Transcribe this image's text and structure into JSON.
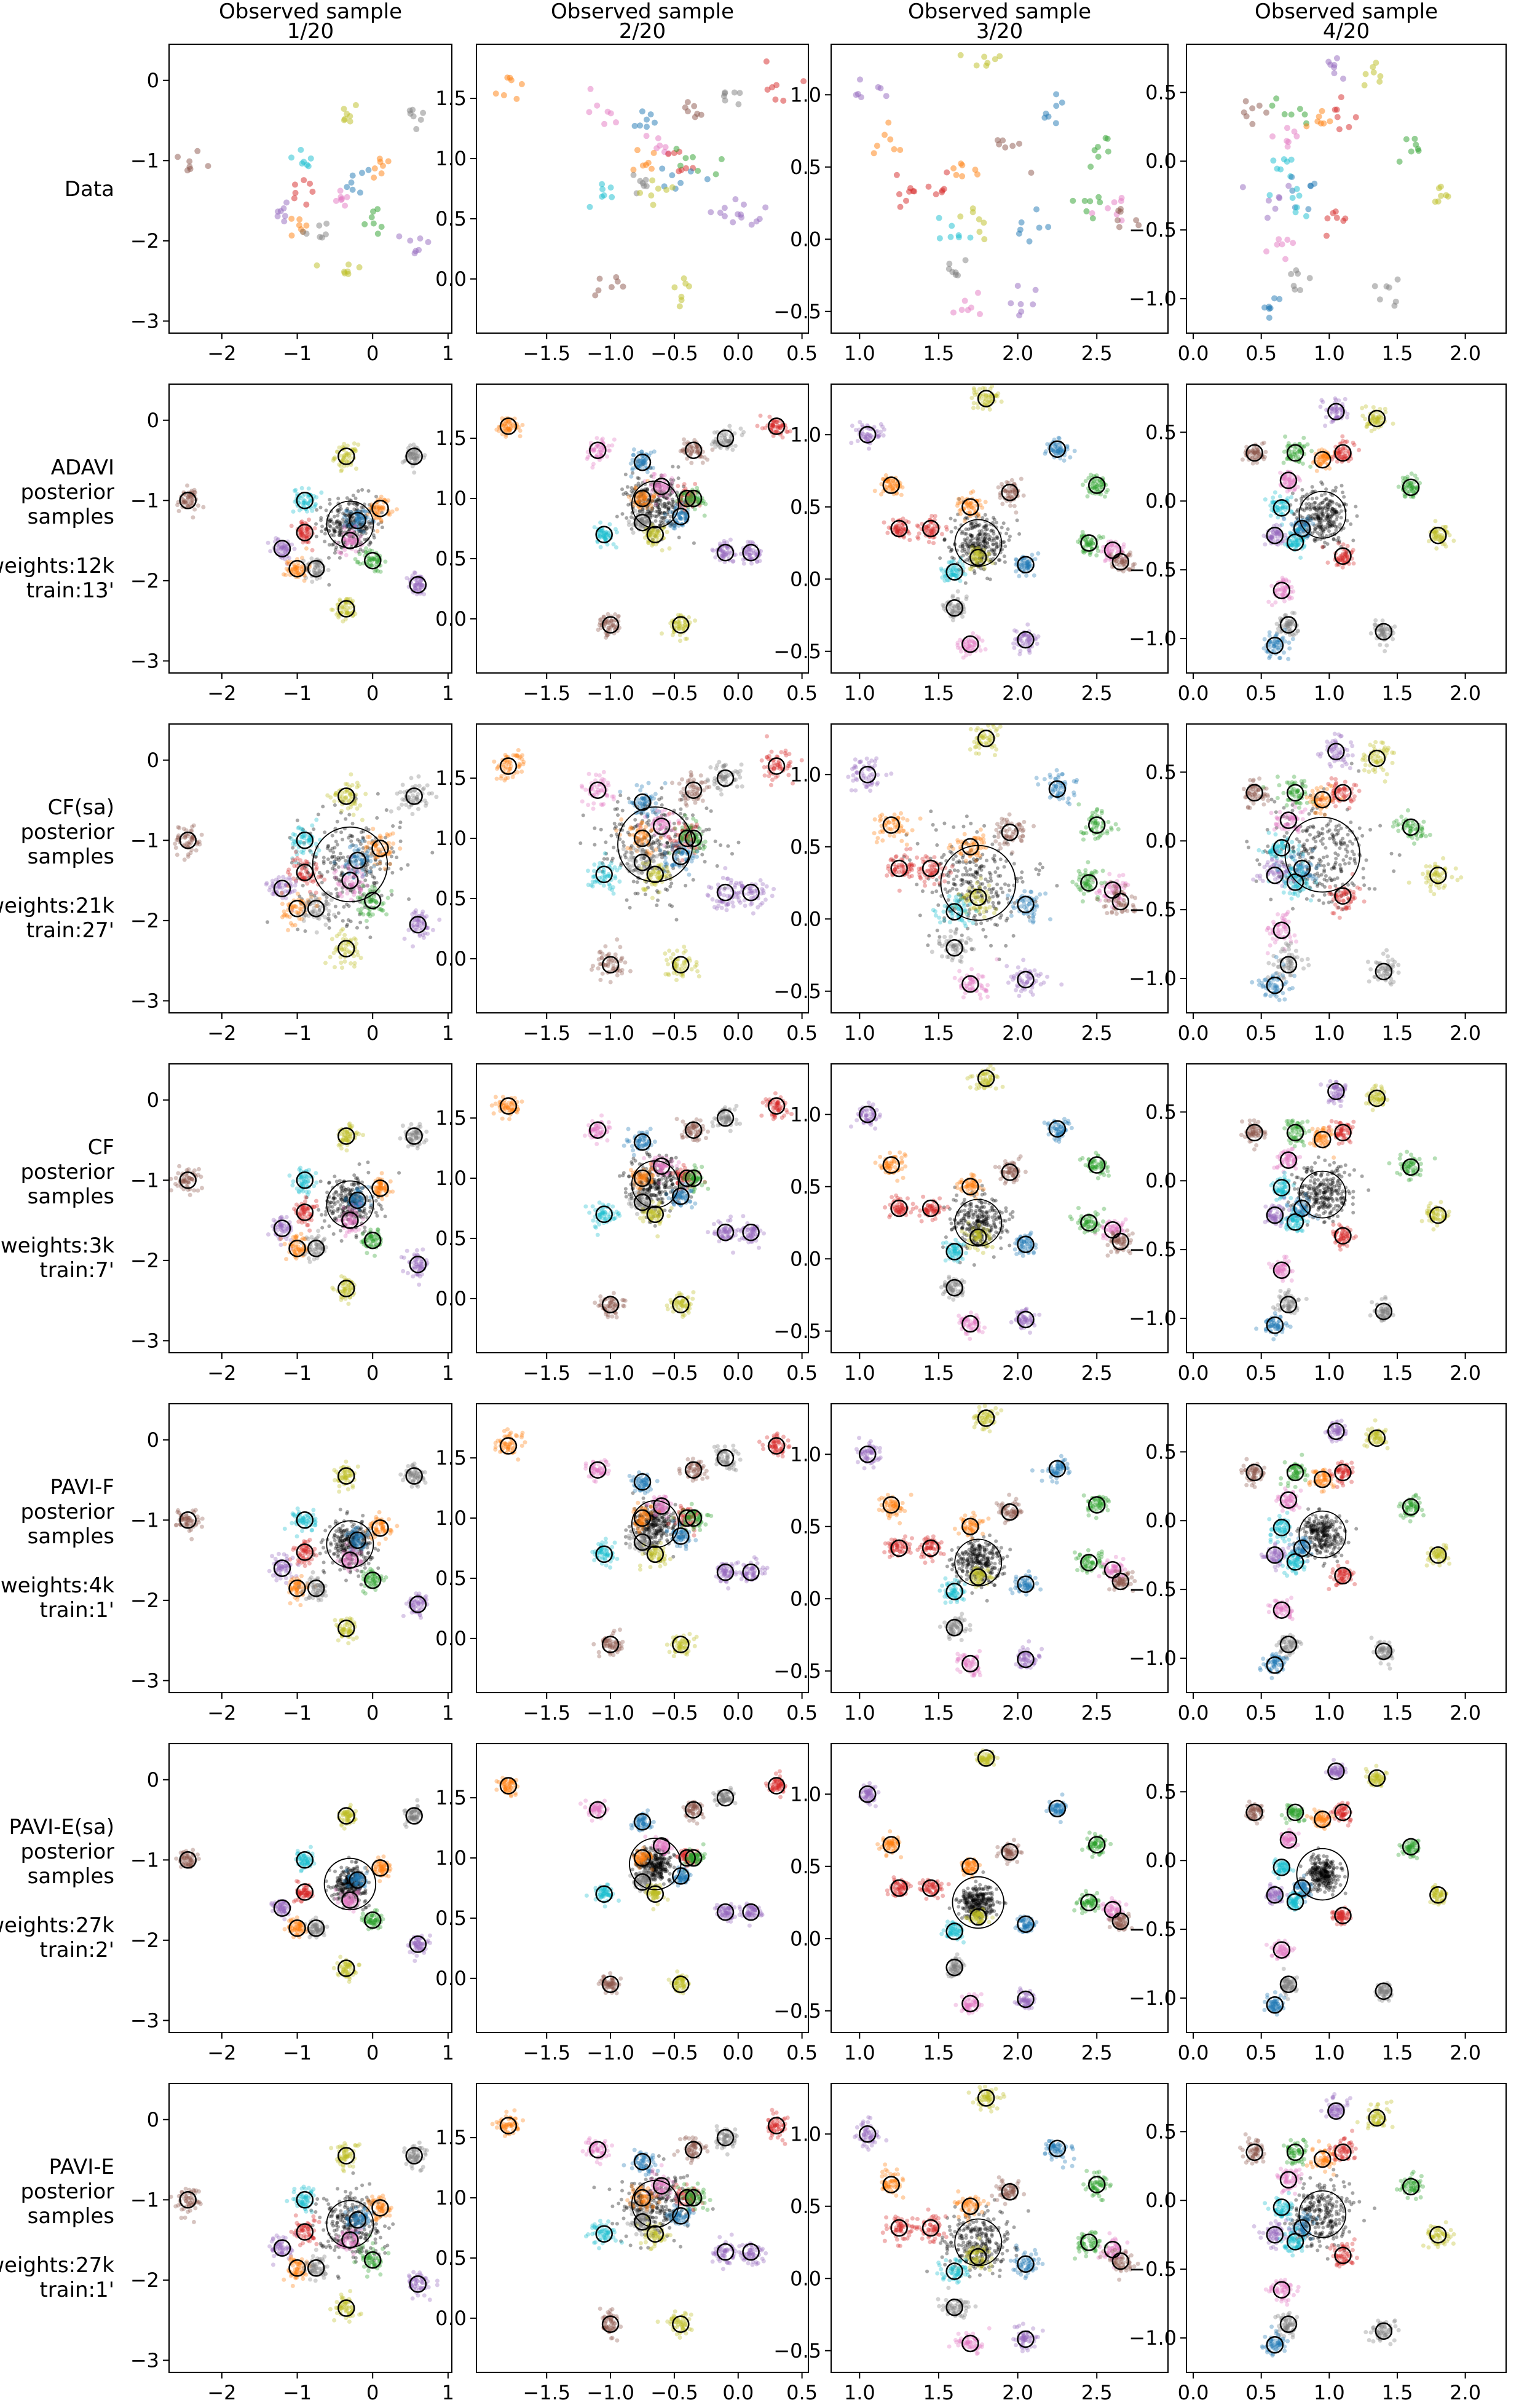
{
  "figure": {
    "columns": [
      {
        "title_line1": "Observed sample",
        "title_line2": "1/20"
      },
      {
        "title_line1": "Observed sample",
        "title_line2": "2/20"
      },
      {
        "title_line1": "Observed sample",
        "title_line2": "3/20"
      },
      {
        "title_line1": "Observed sample",
        "title_line2": "4/20"
      }
    ],
    "rows": [
      {
        "label_lines": [
          "Data"
        ],
        "method": "Data"
      },
      {
        "label_lines": [
          "ADAVI",
          "posterior",
          "samples",
          "",
          "weights:12k",
          "train:13'"
        ],
        "method": "ADAVI"
      },
      {
        "label_lines": [
          "CF(sa)",
          "posterior",
          "samples",
          "",
          "weights:21k",
          "train:27'"
        ],
        "method": "CF(sa)"
      },
      {
        "label_lines": [
          "CF",
          "posterior",
          "samples",
          "",
          "weights:3k",
          "train:7'"
        ],
        "method": "CF"
      },
      {
        "label_lines": [
          "PAVI-F",
          "posterior",
          "samples",
          "",
          "weights:4k",
          "train:1'"
        ],
        "method": "PAVI-F"
      },
      {
        "label_lines": [
          "PAVI-E(sa)",
          "posterior",
          "samples",
          "",
          "weights:27k",
          "train:2'"
        ],
        "method": "PAVI-E(sa)"
      },
      {
        "label_lines": [
          "PAVI-E",
          "posterior",
          "samples",
          "",
          "weights:27k",
          "train:1'"
        ],
        "method": "PAVI-E"
      }
    ],
    "palette": {
      "blue": "#1f77b4",
      "orange": "#ff7f0e",
      "green": "#2ca02c",
      "red": "#d62728",
      "purple": "#9467bd",
      "brown": "#8c564b",
      "pink": "#e377c2",
      "gray": "#7f7f7f",
      "olive": "#bcbd22",
      "cyan": "#17becf",
      "black": "#000000"
    }
  },
  "chart_data": [
    {
      "type": "scatter",
      "panel": "observed-sample-1-of-20",
      "xlim": [
        -2.7,
        1.05
      ],
      "ylim": [
        -3.15,
        0.45
      ],
      "xticks": [
        -2,
        -1,
        0,
        1
      ],
      "yticks": [
        -3,
        -2,
        -1,
        0
      ],
      "xtick_labels": [
        "−2",
        "−1",
        "0",
        "1"
      ],
      "ytick_labels": [
        "−3",
        "−2",
        "−1",
        "0"
      ],
      "population_mean": [
        -0.3,
        -1.3
      ],
      "clusters": [
        {
          "color": "brown",
          "mean": [
            -2.45,
            -1.0
          ]
        },
        {
          "color": "olive",
          "mean": [
            -0.35,
            -0.45
          ]
        },
        {
          "color": "gray",
          "mean": [
            0.55,
            -0.45
          ]
        },
        {
          "color": "cyan",
          "mean": [
            -0.9,
            -1.0
          ]
        },
        {
          "color": "orange",
          "mean": [
            0.1,
            -1.1
          ]
        },
        {
          "color": "blue",
          "mean": [
            -0.2,
            -1.25
          ]
        },
        {
          "color": "red",
          "mean": [
            -0.9,
            -1.4
          ]
        },
        {
          "color": "pink",
          "mean": [
            -0.3,
            -1.5
          ]
        },
        {
          "color": "purple",
          "mean": [
            -1.2,
            -1.6
          ]
        },
        {
          "color": "orange",
          "mean": [
            -1.0,
            -1.85
          ]
        },
        {
          "color": "gray",
          "mean": [
            -0.75,
            -1.85
          ]
        },
        {
          "color": "green",
          "mean": [
            0.0,
            -1.75
          ]
        },
        {
          "color": "purple",
          "mean": [
            0.6,
            -2.05
          ]
        },
        {
          "color": "olive",
          "mean": [
            -0.35,
            -2.35
          ]
        }
      ]
    },
    {
      "type": "scatter",
      "panel": "observed-sample-2-of-20",
      "xlim": [
        -2.05,
        0.55
      ],
      "ylim": [
        -0.45,
        1.95
      ],
      "xticks": [
        -1.5,
        -1.0,
        -0.5,
        0.0,
        0.5
      ],
      "yticks": [
        0.0,
        0.5,
        1.0,
        1.5
      ],
      "xtick_labels": [
        "−1.5",
        "−1.0",
        "−0.5",
        "0.0",
        "0.5"
      ],
      "ytick_labels": [
        "0.0",
        "0.5",
        "1.0",
        "1.5"
      ],
      "population_mean": [
        -0.65,
        0.95
      ],
      "clusters": [
        {
          "color": "orange",
          "mean": [
            -1.8,
            1.6
          ]
        },
        {
          "color": "pink",
          "mean": [
            -1.1,
            1.4
          ]
        },
        {
          "color": "blue",
          "mean": [
            -0.75,
            1.3
          ]
        },
        {
          "color": "brown",
          "mean": [
            -0.35,
            1.4
          ]
        },
        {
          "color": "gray",
          "mean": [
            -0.1,
            1.5
          ]
        },
        {
          "color": "red",
          "mean": [
            0.3,
            1.6
          ]
        },
        {
          "color": "pink",
          "mean": [
            -0.6,
            1.1
          ]
        },
        {
          "color": "orange",
          "mean": [
            -0.75,
            1.0
          ]
        },
        {
          "color": "red",
          "mean": [
            -0.4,
            1.0
          ]
        },
        {
          "color": "green",
          "mean": [
            -0.35,
            1.0
          ]
        },
        {
          "color": "gray",
          "mean": [
            -0.75,
            0.8
          ]
        },
        {
          "color": "blue",
          "mean": [
            -0.45,
            0.85
          ]
        },
        {
          "color": "cyan",
          "mean": [
            -1.05,
            0.7
          ]
        },
        {
          "color": "olive",
          "mean": [
            -0.65,
            0.7
          ]
        },
        {
          "color": "purple",
          "mean": [
            -0.1,
            0.55
          ]
        },
        {
          "color": "purple",
          "mean": [
            0.1,
            0.55
          ]
        },
        {
          "color": "brown",
          "mean": [
            -1.0,
            -0.05
          ]
        },
        {
          "color": "olive",
          "mean": [
            -0.45,
            -0.05
          ]
        }
      ]
    },
    {
      "type": "scatter",
      "panel": "observed-sample-3-of-20",
      "xlim": [
        0.82,
        2.95
      ],
      "ylim": [
        -0.65,
        1.35
      ],
      "xticks": [
        1.0,
        1.5,
        2.0,
        2.5
      ],
      "yticks": [
        -0.5,
        0.0,
        0.5,
        1.0
      ],
      "xtick_labels": [
        "1.0",
        "1.5",
        "2.0",
        "2.5"
      ],
      "ytick_labels": [
        "−0.5",
        "0.0",
        "0.5",
        "1.0"
      ],
      "population_mean": [
        1.75,
        0.25
      ],
      "clusters": [
        {
          "color": "olive",
          "mean": [
            1.8,
            1.25
          ]
        },
        {
          "color": "purple",
          "mean": [
            1.05,
            1.0
          ]
        },
        {
          "color": "blue",
          "mean": [
            2.25,
            0.9
          ]
        },
        {
          "color": "green",
          "mean": [
            2.5,
            0.65
          ]
        },
        {
          "color": "orange",
          "mean": [
            1.2,
            0.65
          ]
        },
        {
          "color": "brown",
          "mean": [
            1.95,
            0.6
          ]
        },
        {
          "color": "orange",
          "mean": [
            1.7,
            0.5
          ]
        },
        {
          "color": "red",
          "mean": [
            1.25,
            0.35
          ]
        },
        {
          "color": "red",
          "mean": [
            1.45,
            0.35
          ]
        },
        {
          "color": "pink",
          "mean": [
            2.6,
            0.2
          ]
        },
        {
          "color": "green",
          "mean": [
            2.45,
            0.25
          ]
        },
        {
          "color": "olive",
          "mean": [
            1.75,
            0.15
          ]
        },
        {
          "color": "brown",
          "mean": [
            2.65,
            0.12
          ]
        },
        {
          "color": "blue",
          "mean": [
            2.05,
            0.1
          ]
        },
        {
          "color": "cyan",
          "mean": [
            1.6,
            0.05
          ]
        },
        {
          "color": "gray",
          "mean": [
            1.6,
            -0.2
          ]
        },
        {
          "color": "pink",
          "mean": [
            1.7,
            -0.45
          ]
        },
        {
          "color": "purple",
          "mean": [
            2.05,
            -0.42
          ]
        }
      ]
    },
    {
      "type": "scatter",
      "panel": "observed-sample-4-of-20",
      "xlim": [
        -0.05,
        2.3
      ],
      "ylim": [
        -1.25,
        0.85
      ],
      "xticks": [
        0.0,
        0.5,
        1.0,
        1.5,
        2.0
      ],
      "yticks": [
        -1.0,
        -0.5,
        0.0,
        0.5
      ],
      "xtick_labels": [
        "0.0",
        "0.5",
        "1.0",
        "1.5",
        "2.0"
      ],
      "ytick_labels": [
        "−1.0",
        "−0.5",
        "0.0",
        "0.5"
      ],
      "population_mean": [
        0.95,
        -0.1
      ],
      "clusters": [
        {
          "color": "purple",
          "mean": [
            1.05,
            0.65
          ]
        },
        {
          "color": "olive",
          "mean": [
            1.35,
            0.6
          ]
        },
        {
          "color": "brown",
          "mean": [
            0.45,
            0.35
          ]
        },
        {
          "color": "green",
          "mean": [
            0.75,
            0.35
          ]
        },
        {
          "color": "orange",
          "mean": [
            0.95,
            0.3
          ]
        },
        {
          "color": "red",
          "mean": [
            1.1,
            0.35
          ]
        },
        {
          "color": "pink",
          "mean": [
            0.7,
            0.15
          ]
        },
        {
          "color": "green",
          "mean": [
            1.6,
            0.1
          ]
        },
        {
          "color": "cyan",
          "mean": [
            0.65,
            -0.05
          ]
        },
        {
          "color": "blue",
          "mean": [
            0.8,
            -0.2
          ]
        },
        {
          "color": "purple",
          "mean": [
            0.6,
            -0.25
          ]
        },
        {
          "color": "cyan",
          "mean": [
            0.75,
            -0.3
          ]
        },
        {
          "color": "red",
          "mean": [
            1.1,
            -0.4
          ]
        },
        {
          "color": "olive",
          "mean": [
            1.8,
            -0.25
          ]
        },
        {
          "color": "pink",
          "mean": [
            0.65,
            -0.65
          ]
        },
        {
          "color": "gray",
          "mean": [
            0.7,
            -0.9
          ]
        },
        {
          "color": "blue",
          "mean": [
            0.6,
            -1.05
          ]
        },
        {
          "color": "gray",
          "mean": [
            1.4,
            -0.95
          ]
        }
      ]
    }
  ]
}
